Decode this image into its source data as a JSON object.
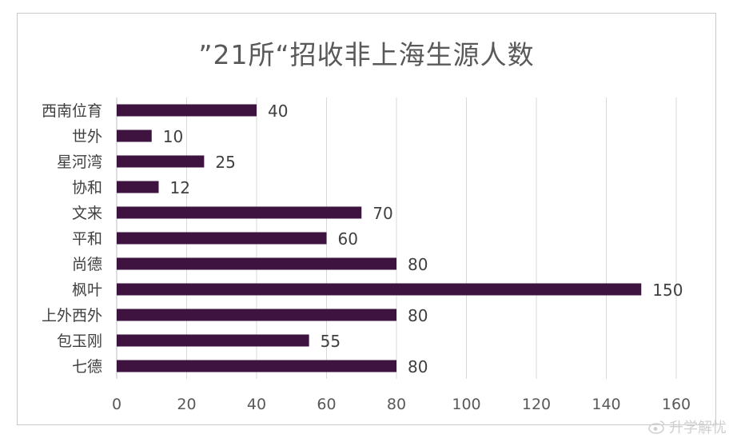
{
  "chart_data": {
    "type": "bar",
    "orientation": "horizontal",
    "title": "”21所“招收非上海生源人数",
    "categories": [
      "西南位育",
      "世外",
      "星河湾",
      "协和",
      "文来",
      "平和",
      "尚德",
      "枫叶",
      "上外西外",
      "包玉刚",
      "七德"
    ],
    "values": [
      40,
      10,
      25,
      12,
      70,
      60,
      80,
      150,
      80,
      55,
      80
    ],
    "xlabel": "",
    "ylabel": "",
    "xlim": [
      0,
      160
    ],
    "xticks": [
      0,
      20,
      40,
      60,
      80,
      100,
      120,
      140,
      160
    ],
    "grid": "vertical",
    "legend": "none",
    "data_labels": true,
    "colors": {
      "bar": "#3f1340",
      "grid": "#d9d9d9",
      "frame": "#c9c9c9",
      "text": "#595959"
    }
  },
  "watermark": {
    "text": "升学解忧",
    "icon": "weibo-icon"
  }
}
